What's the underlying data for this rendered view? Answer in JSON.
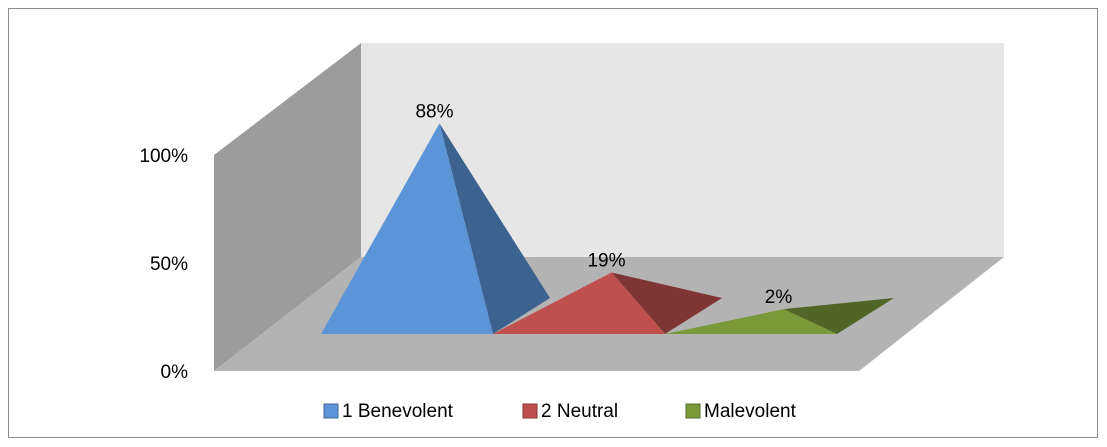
{
  "chart_data": {
    "type": "pyramid-3d",
    "categories": [
      "1 Benevolent",
      "2 Neutral",
      "Malevolent"
    ],
    "values": [
      88,
      19,
      2
    ],
    "value_labels": [
      "88%",
      "19%",
      "2%"
    ],
    "y_ticks": [
      "0%",
      "50%",
      "100%"
    ],
    "ylim": [
      0,
      100
    ],
    "legend": "bottom",
    "grid": false,
    "colors": {
      "1 Benevolent": "#5b95d8",
      "2 Neutral": "#c0504d",
      "Malevolent": "#7a9a3a",
      "back_wall": "#e6e6e6",
      "side_wall": "#9c9c9c",
      "floor": "#b3b3b3"
    }
  }
}
